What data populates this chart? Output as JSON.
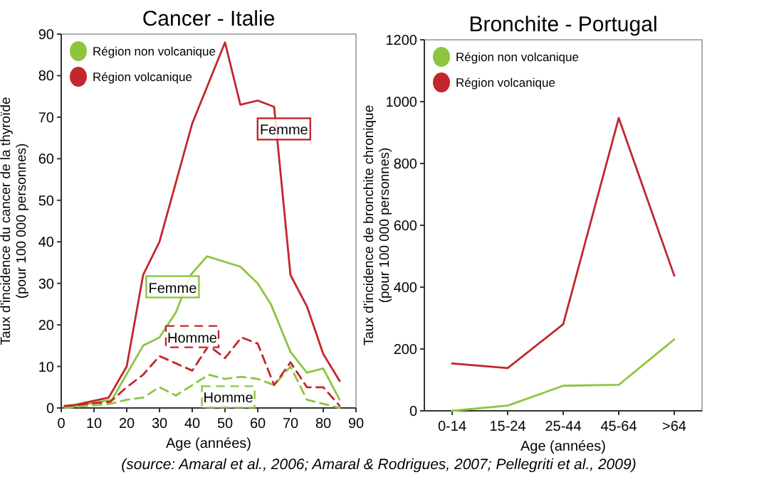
{
  "chart_data": [
    {
      "type": "line",
      "title": "Cancer - Italie",
      "xlabel": "Age (années)",
      "ylabel": "Taux d'incidence du cancer de la thyroïde\n(pour 100 000 personnes)",
      "xlim": [
        0,
        90
      ],
      "xticks": [
        0,
        10,
        20,
        30,
        40,
        50,
        60,
        70,
        80,
        90
      ],
      "ylim": [
        0,
        90
      ],
      "yticks": [
        0,
        10,
        20,
        30,
        40,
        50,
        60,
        70,
        80,
        90
      ],
      "legend": "top left",
      "grid": false,
      "marker": "none",
      "series": [
        {
          "name": "Région non volcanique",
          "color": "#8cc63f",
          "line_style": "solid",
          "x": [
            1,
            15.5,
            20.6,
            25,
            30,
            35,
            39.5,
            44.5,
            54.7,
            60,
            64,
            70,
            75,
            80,
            85
          ],
          "values": [
            0,
            2,
            9,
            15,
            17,
            23,
            32,
            36.5,
            34,
            30,
            25,
            13.5,
            8.5,
            9.5,
            2
          ]
        },
        {
          "name": "Région volcanique",
          "color": "#c1272d",
          "line_style": "solid",
          "x": [
            1,
            14.5,
            20,
            25,
            30,
            40,
            50,
            54.7,
            60,
            65,
            70,
            75,
            80,
            85
          ],
          "values": [
            0.2,
            2.5,
            10,
            32,
            40,
            68.5,
            88,
            73,
            74,
            72.5,
            32,
            24.5,
            13,
            6.5
          ]
        },
        {
          "color": "#8cc63f",
          "line_style": "dashed",
          "x": [
            1,
            15,
            20,
            25,
            30,
            35,
            40,
            45,
            50,
            55,
            60,
            65,
            70,
            75,
            80,
            85
          ],
          "values": [
            0,
            1,
            2,
            2.5,
            5,
            3,
            5.5,
            8,
            7,
            7.5,
            7,
            5.5,
            10,
            2,
            1,
            0
          ]
        },
        {
          "color": "#c1272d",
          "line_style": "dashed",
          "x": [
            1,
            15,
            20,
            25,
            30,
            40,
            45,
            50,
            55,
            60,
            65,
            70,
            75,
            80,
            85
          ],
          "values": [
            0.5,
            1.5,
            5,
            8,
            12.5,
            9,
            15,
            12,
            17,
            15.5,
            5.5,
            11,
            5,
            5,
            0.5
          ]
        }
      ],
      "annotations": [
        {
          "text": "Femme",
          "x": 34,
          "y": 29
        },
        {
          "text": "Femme",
          "x": 68,
          "y": 67
        },
        {
          "text": "Homme",
          "x": 51,
          "y": 2.5
        },
        {
          "text": "Homme",
          "x": 40,
          "y": 17
        },
        "(source: Amaral et al., 2006; Amaral & Rodrigues, 2007; Pellegriti et al., 2009)"
      ]
    },
    {
      "type": "line",
      "title": "Bronchite - Portugal",
      "xlabel": "Age (années)",
      "ylabel": "Taux d'incidence de bronchite chronique\n(pour 100 000 personnes)",
      "categories": [
        "0-14",
        "15-24",
        "25-44",
        "45-64",
        ">64"
      ],
      "ylim": [
        0,
        1200
      ],
      "yticks": [
        0,
        200,
        400,
        600,
        800,
        1000,
        1200
      ],
      "legend": "top left",
      "grid": false,
      "marker": "none",
      "series": [
        {
          "name": "Région non volcanique",
          "color": "#8cc63f",
          "values": [
            0,
            17,
            81,
            84,
            231
          ]
        },
        {
          "name": "Région volcanique",
          "color": "#c1272d",
          "values": [
            153,
            138,
            280,
            947,
            437
          ]
        }
      ]
    }
  ]
}
